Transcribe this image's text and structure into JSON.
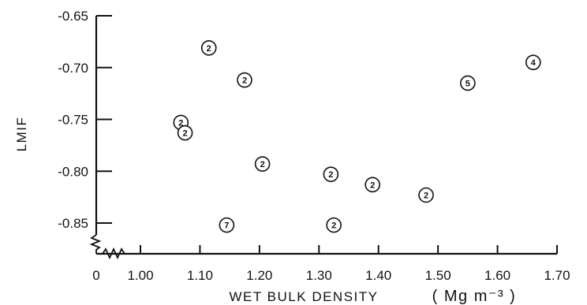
{
  "chart_data": {
    "type": "scatter",
    "xlabel_main": "WET  BULK  DENSITY",
    "xlabel_unit": "( Mg m⁻³ )",
    "ylabel": "LMIF",
    "xlim": [
      1.0,
      1.7
    ],
    "ylim": [
      -0.87,
      -0.65
    ],
    "x_ticks": [
      1.0,
      1.1,
      1.2,
      1.3,
      1.4,
      1.5,
      1.6,
      1.7
    ],
    "x_tick_labels": [
      "1.00",
      "1.10",
      "1.20",
      "1.30",
      "1.40",
      "1.50",
      "1.60",
      "1.70"
    ],
    "x_origin_label": "0",
    "y_ticks": [
      -0.65,
      -0.7,
      -0.75,
      -0.8,
      -0.85
    ],
    "y_tick_labels": [
      "-0.65",
      "-0.70",
      "-0.75",
      "-0.80",
      "-0.85"
    ],
    "axis_breaks": true,
    "grid": false,
    "points": [
      {
        "x": 1.115,
        "y": -0.681,
        "label": "2"
      },
      {
        "x": 1.175,
        "y": -0.712,
        "label": "2"
      },
      {
        "x": 1.068,
        "y": -0.753,
        "label": "2"
      },
      {
        "x": 1.075,
        "y": -0.763,
        "label": "2"
      },
      {
        "x": 1.205,
        "y": -0.793,
        "label": "2"
      },
      {
        "x": 1.32,
        "y": -0.803,
        "label": "2"
      },
      {
        "x": 1.39,
        "y": -0.813,
        "label": "2"
      },
      {
        "x": 1.48,
        "y": -0.823,
        "label": "2"
      },
      {
        "x": 1.145,
        "y": -0.852,
        "label": "7"
      },
      {
        "x": 1.325,
        "y": -0.852,
        "label": "2"
      },
      {
        "x": 1.55,
        "y": -0.715,
        "label": "5"
      },
      {
        "x": 1.66,
        "y": -0.695,
        "label": "4"
      }
    ]
  }
}
